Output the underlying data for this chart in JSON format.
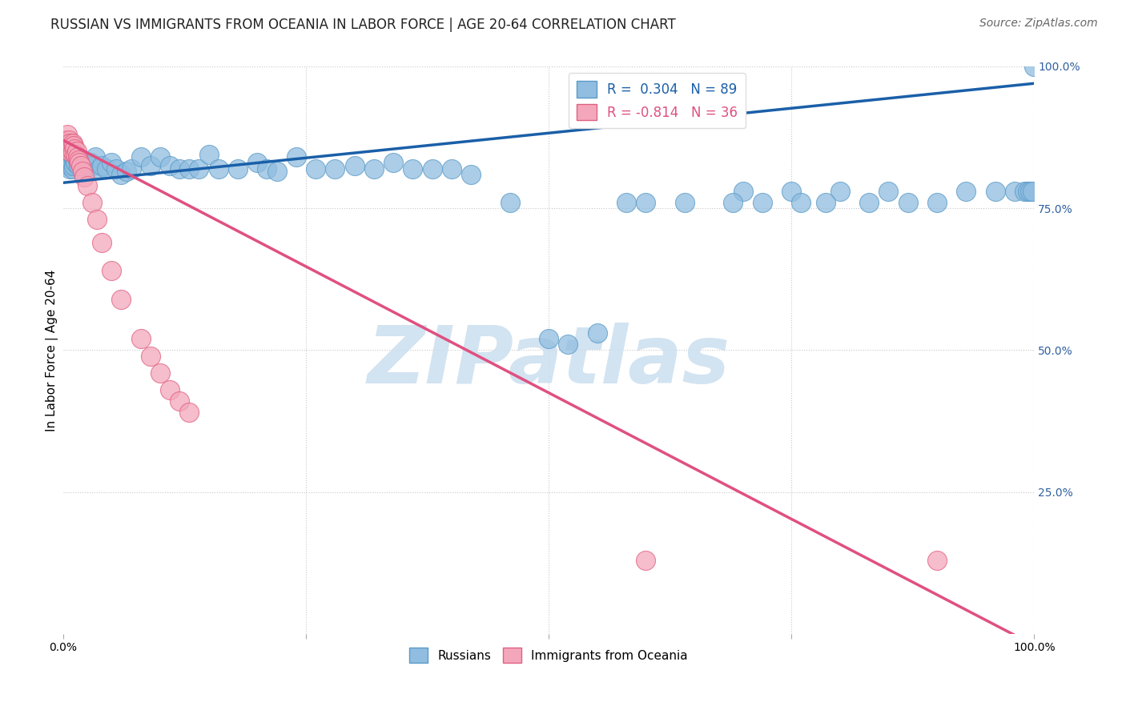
{
  "title": "RUSSIAN VS IMMIGRANTS FROM OCEANIA IN LABOR FORCE | AGE 20-64 CORRELATION CHART",
  "source": "Source: ZipAtlas.com",
  "ylabel": "In Labor Force | Age 20-64",
  "legend_label1": "R =  0.304   N = 89",
  "legend_label2": "R = -0.814   N = 36",
  "legend_bottom_label1": "Russians",
  "legend_bottom_label2": "Immigrants from Oceania",
  "blue_color": "#90bde0",
  "blue_edge_color": "#5a9bc8",
  "pink_color": "#f4a7bb",
  "pink_edge_color": "#e06080",
  "blue_line_color": "#1a5fa8",
  "pink_line_color": "#e05080",
  "watermark_color": "#cde0f0",
  "grid_color": "#c8c8c8",
  "background_color": "#ffffff",
  "right_tick_color": "#3060a0",
  "title_fontsize": 12,
  "axis_label_fontsize": 11,
  "tick_fontsize": 10,
  "source_fontsize": 10,
  "xlim": [
    0.0,
    1.0
  ],
  "ylim": [
    0.0,
    1.0
  ],
  "blue_line_x0": 0.0,
  "blue_line_y0": 0.795,
  "blue_line_x1": 1.0,
  "blue_line_y1": 0.97,
  "pink_line_x0": 0.0,
  "pink_line_y0": 0.87,
  "pink_line_x1": 1.0,
  "pink_line_y1": -0.02,
  "blue_x": [
    0.003,
    0.004,
    0.004,
    0.005,
    0.005,
    0.005,
    0.006,
    0.006,
    0.007,
    0.007,
    0.007,
    0.008,
    0.008,
    0.009,
    0.009,
    0.01,
    0.01,
    0.011,
    0.011,
    0.012,
    0.013,
    0.014,
    0.015,
    0.016,
    0.017,
    0.018,
    0.02,
    0.022,
    0.025,
    0.028,
    0.03,
    0.033,
    0.037,
    0.04,
    0.045,
    0.05,
    0.055,
    0.06,
    0.065,
    0.07,
    0.08,
    0.09,
    0.1,
    0.11,
    0.12,
    0.13,
    0.14,
    0.15,
    0.16,
    0.18,
    0.2,
    0.21,
    0.22,
    0.24,
    0.26,
    0.28,
    0.3,
    0.32,
    0.34,
    0.36,
    0.38,
    0.4,
    0.42,
    0.46,
    0.5,
    0.52,
    0.55,
    0.58,
    0.6,
    0.64,
    0.7,
    0.75,
    0.8,
    0.85,
    0.9,
    0.93,
    0.96,
    0.98,
    0.99,
    0.993,
    0.996,
    0.998,
    1.0,
    0.69,
    0.72,
    0.76,
    0.785,
    0.83,
    0.87
  ],
  "blue_y": [
    0.845,
    0.85,
    0.83,
    0.855,
    0.84,
    0.825,
    0.845,
    0.83,
    0.85,
    0.835,
    0.82,
    0.84,
    0.825,
    0.85,
    0.83,
    0.84,
    0.82,
    0.845,
    0.825,
    0.835,
    0.83,
    0.84,
    0.835,
    0.825,
    0.835,
    0.83,
    0.83,
    0.82,
    0.825,
    0.83,
    0.825,
    0.84,
    0.82,
    0.825,
    0.82,
    0.83,
    0.82,
    0.81,
    0.815,
    0.82,
    0.84,
    0.825,
    0.84,
    0.825,
    0.82,
    0.82,
    0.82,
    0.845,
    0.82,
    0.82,
    0.83,
    0.82,
    0.815,
    0.84,
    0.82,
    0.82,
    0.825,
    0.82,
    0.83,
    0.82,
    0.82,
    0.82,
    0.81,
    0.76,
    0.52,
    0.51,
    0.53,
    0.76,
    0.76,
    0.76,
    0.78,
    0.78,
    0.78,
    0.78,
    0.76,
    0.78,
    0.78,
    0.78,
    0.78,
    0.78,
    0.78,
    0.78,
    1.0,
    0.76,
    0.76,
    0.76,
    0.76,
    0.76,
    0.76
  ],
  "pink_x": [
    0.003,
    0.004,
    0.004,
    0.005,
    0.006,
    0.006,
    0.007,
    0.007,
    0.008,
    0.009,
    0.01,
    0.01,
    0.011,
    0.012,
    0.013,
    0.014,
    0.015,
    0.016,
    0.017,
    0.018,
    0.02,
    0.022,
    0.025,
    0.03,
    0.035,
    0.04,
    0.05,
    0.06,
    0.08,
    0.09,
    0.1,
    0.11,
    0.12,
    0.13,
    0.6,
    0.9
  ],
  "pink_y": [
    0.87,
    0.88,
    0.86,
    0.865,
    0.87,
    0.855,
    0.865,
    0.85,
    0.855,
    0.86,
    0.865,
    0.85,
    0.86,
    0.855,
    0.845,
    0.85,
    0.84,
    0.835,
    0.83,
    0.825,
    0.815,
    0.805,
    0.79,
    0.76,
    0.73,
    0.69,
    0.64,
    0.59,
    0.52,
    0.49,
    0.46,
    0.43,
    0.41,
    0.39,
    0.13,
    0.13
  ]
}
